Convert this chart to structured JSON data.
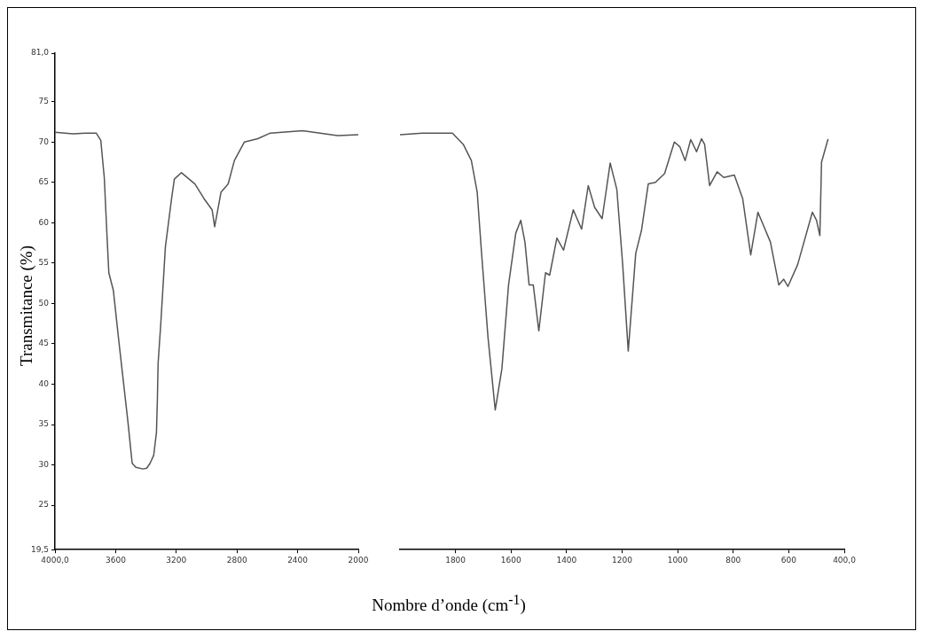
{
  "chart_data": [
    {
      "type": "line",
      "ylabel": "Transmitance (%)",
      "xlim": [
        4000,
        2000
      ],
      "xticks": [
        {
          "value": 4000,
          "label": "4000,0"
        },
        3600,
        3200,
        2800,
        2400,
        2000
      ],
      "ylim": [
        19.5,
        81
      ],
      "yticks": [
        {
          "value": 19.5,
          "label": "19,5"
        },
        25,
        30,
        35,
        40,
        45,
        50,
        55,
        60,
        65,
        70,
        75,
        {
          "value": 81,
          "label": "81,0"
        }
      ],
      "grid": false,
      "marker": "none",
      "line_style": "solid",
      "x": [
        4000,
        3882,
        3800,
        3728,
        3698,
        3675,
        3657,
        3645,
        3615,
        3580,
        3520,
        3491,
        3467,
        3420,
        3395,
        3373,
        3349,
        3331,
        3325,
        3320,
        3302,
        3272,
        3231,
        3213,
        3166,
        3077,
        3018,
        2964,
        2947,
        2905,
        2858,
        2817,
        2751,
        2663,
        2580,
        2367,
        2136,
        2000
      ],
      "series": [
        {
          "color": "#555555",
          "values": [
            71.2,
            71.0,
            71.1,
            71.1,
            70.2,
            65.6,
            58.4,
            53.8,
            51.6,
            45.5,
            35.5,
            30.2,
            29.7,
            29.5,
            29.6,
            30.2,
            31.2,
            34,
            38,
            42.6,
            47.6,
            57,
            63,
            65.4,
            66.2,
            64.8,
            63,
            61.6,
            59.5,
            63.8,
            64.8,
            67.7,
            70,
            70.4,
            71.1,
            71.4,
            70.8,
            70.9
          ]
        }
      ]
    },
    {
      "type": "line",
      "xlabel": "Nombre d’onde (cm$^{-1}$)",
      "tick_labels": "x",
      "xlim": [
        2000,
        400
      ],
      "xticks": [
        1800,
        1600,
        1400,
        1200,
        1000,
        800,
        600,
        {
          "value": 400,
          "label": "400,0"
        }
      ],
      "ylim": [
        19.5,
        81
      ],
      "grid": false,
      "marker": "none",
      "line_style": "solid",
      "x": [
        2000,
        1920,
        1811,
        1772,
        1743,
        1722,
        1707,
        1683,
        1657,
        1633,
        1609,
        1583,
        1565,
        1550,
        1535,
        1520,
        1500,
        1476,
        1461,
        1435,
        1411,
        1376,
        1346,
        1322,
        1299,
        1272,
        1243,
        1219,
        1198,
        1178,
        1151,
        1130,
        1106,
        1080,
        1047,
        1012,
        992,
        973,
        953,
        932,
        914,
        903,
        885,
        858,
        834,
        796,
        766,
        737,
        711,
        666,
        636,
        618,
        603,
        568,
        515,
        500,
        488,
        482,
        459
      ],
      "series": [
        {
          "color": "#555555",
          "values": [
            70.9,
            71.1,
            71.1,
            69.7,
            67.7,
            63.8,
            56.6,
            45.8,
            36.8,
            41.9,
            52.3,
            58.7,
            60.3,
            57.6,
            52.3,
            52.3,
            46.6,
            53.8,
            53.5,
            58.1,
            56.6,
            61.6,
            59.2,
            64.6,
            61.9,
            60.5,
            67.4,
            64.1,
            54.8,
            44.1,
            56.2,
            59.1,
            64.8,
            65,
            66.1,
            70,
            69.4,
            67.7,
            70.3,
            68.8,
            70.4,
            69.7,
            64.6,
            66.3,
            65.6,
            65.9,
            63,
            56,
            61.3,
            57.6,
            52.3,
            53,
            52.1,
            54.8,
            61.3,
            60.3,
            58.4,
            67.5,
            70.3
          ]
        }
      ]
    }
  ]
}
